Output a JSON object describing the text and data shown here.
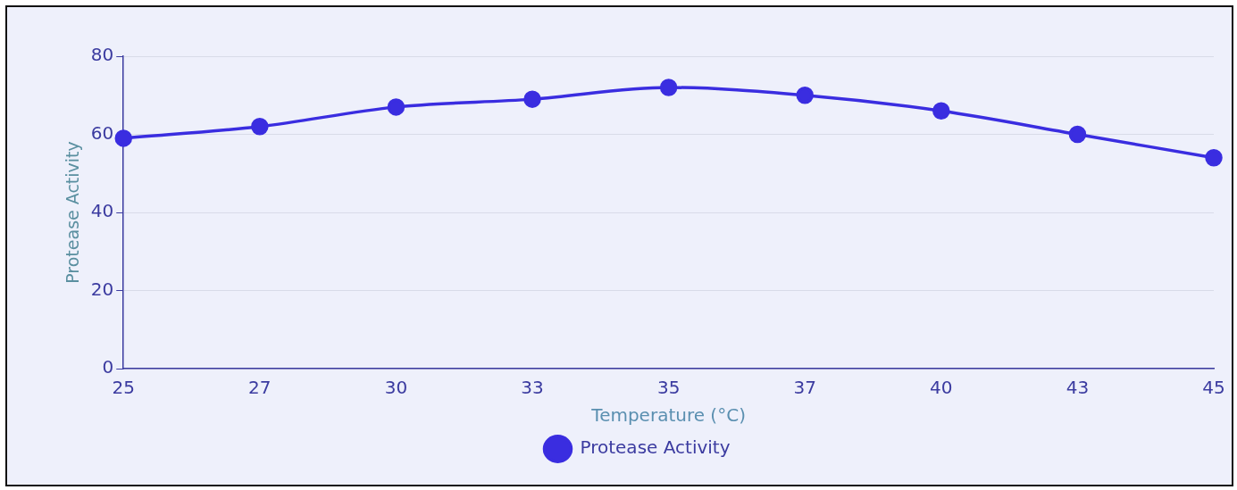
{
  "chart_data": {
    "type": "line",
    "xlabel": "Temperature (°C)",
    "ylabel": "Protease Activity",
    "categories": [
      "25",
      "27",
      "30",
      "33",
      "35",
      "37",
      "40",
      "43",
      "45"
    ],
    "series": [
      {
        "name": "Protease Activity",
        "color": "#3a2de0",
        "values": [
          59,
          62,
          67,
          69,
          72,
          70,
          66,
          60,
          54
        ]
      }
    ],
    "ylim": [
      0,
      80
    ],
    "yticks": [
      0,
      20,
      40,
      60,
      80
    ],
    "grid": "y",
    "legend": "bottom",
    "marker": "circle",
    "line_style": "solid"
  }
}
